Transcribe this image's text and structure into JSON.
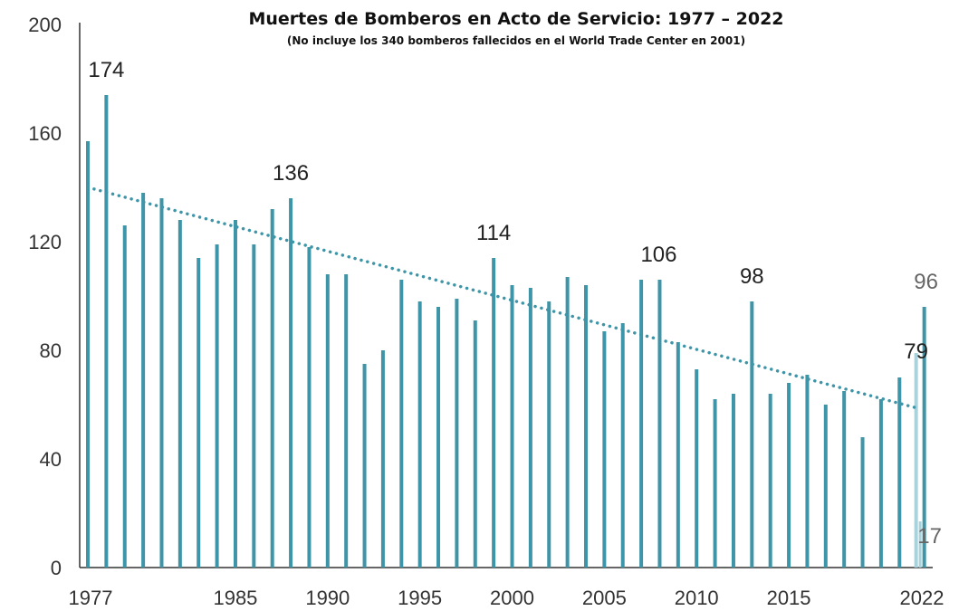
{
  "chart_data": {
    "type": "bar",
    "title": "Muertes de Bomberos en Acto de Servicio: 1977 – 2022",
    "subtitle": "(No incluye los 340 bomberos fallecidos en el World Trade Center en 2001)",
    "xlabel": "",
    "ylabel": "",
    "ylim": [
      0,
      200
    ],
    "yticks": [
      0,
      40,
      80,
      120,
      160,
      200
    ],
    "xtick_labels": [
      "1977",
      "1985",
      "1990",
      "1995",
      "2000",
      "2005",
      "2010",
      "2015",
      "2022"
    ],
    "grid": false,
    "years": [
      1977,
      1978,
      1979,
      1980,
      1981,
      1982,
      1983,
      1984,
      1985,
      1986,
      1987,
      1988,
      1989,
      1990,
      1991,
      1992,
      1993,
      1994,
      1995,
      1996,
      1997,
      1998,
      1999,
      2000,
      2001,
      2002,
      2003,
      2004,
      2005,
      2006,
      2007,
      2008,
      2009,
      2010,
      2011,
      2012,
      2013,
      2014,
      2015,
      2016,
      2017,
      2018,
      2019,
      2020,
      2021
    ],
    "values": [
      157,
      174,
      126,
      138,
      136,
      128,
      114,
      119,
      128,
      119,
      132,
      136,
      118,
      108,
      108,
      75,
      80,
      106,
      98,
      96,
      99,
      91,
      114,
      104,
      103,
      98,
      107,
      104,
      87,
      90,
      106,
      106,
      83,
      73,
      62,
      64,
      98,
      64,
      68,
      71,
      60,
      65,
      48,
      62,
      70
    ],
    "final_year": {
      "year": 2022,
      "total": 96,
      "segments": [
        79,
        17
      ]
    },
    "trendline": {
      "style": "dotted",
      "start": [
        1977,
        140
      ],
      "end": [
        2022,
        59
      ]
    },
    "data_labels": [
      {
        "year": 1978,
        "text": "174"
      },
      {
        "year": 1988,
        "text": "136"
      },
      {
        "year": 1999,
        "text": "114"
      },
      {
        "year": 2008,
        "text": "106"
      },
      {
        "year": 2013,
        "text": "98"
      },
      {
        "year": 2022,
        "text": "96"
      },
      {
        "year": 2022,
        "text": "79"
      },
      {
        "year": 2022,
        "text": "17"
      }
    ],
    "colors": {
      "bar": "#3e95a8",
      "bar_light": "#a9d3dc",
      "trend": "#3e95a8",
      "axis": "#333333"
    }
  }
}
